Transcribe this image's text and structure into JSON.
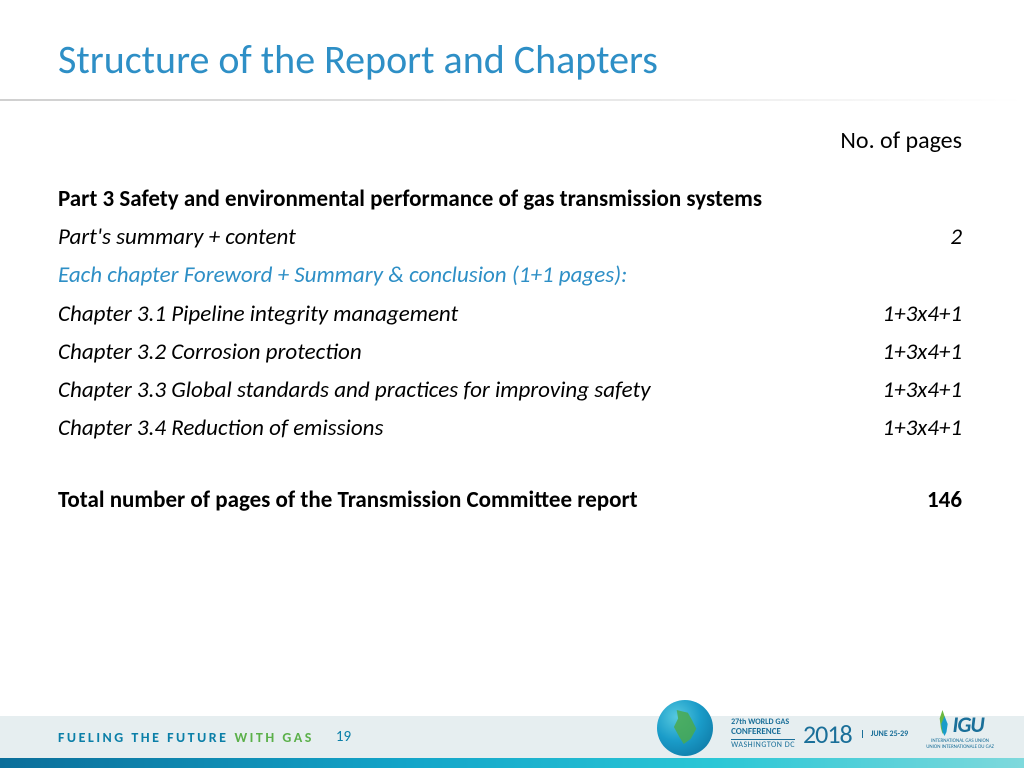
{
  "title": "Structure of the Report and Chapters",
  "header_right": "No. of pages",
  "part_heading": "Part 3 Safety and environmental performance of gas transmission systems",
  "summary_row": {
    "label": "Part's summary + content",
    "value": "2"
  },
  "foreword_note": "Each chapter Foreword + Summary & conclusion (1+1 pages):",
  "chapters": [
    {
      "label": "Chapter 3.1 Pipeline integrity management",
      "value": "1+3x4+1"
    },
    {
      "label": "Chapter 3.2 Corrosion protection",
      "value": "1+3x4+1"
    },
    {
      "label": "Chapter 3.3 Global standards and practices for improving safety",
      "value": "1+3x4+1"
    },
    {
      "label": "Chapter 3.4 Reduction of emissions",
      "value": "1+3x4+1"
    }
  ],
  "total_row": {
    "label": "Total number of pages of the Transmission Committee report",
    "value": "146"
  },
  "footer": {
    "tagline_a": "FUELING THE FUTURE",
    "tagline_b": "WITH GAS",
    "page_number": "19",
    "conference": {
      "line1": "27th WORLD GAS",
      "line2": "CONFERENCE",
      "line3": "WASHINGTON DC",
      "year": "2018",
      "date1": "JUNE 25-29"
    },
    "igu": {
      "text": "IGU",
      "sub1": "INTERNATIONAL GAS UNION",
      "sub2": "UNION INTERNATIONALE DU GAZ"
    }
  },
  "colors": {
    "title_color": "#2e8fc6",
    "text_color": "#000000",
    "accent_blue": "#0b7fa8",
    "accent_green": "#5bb04a",
    "background": "#ffffff",
    "footer_band": "#e6eef0"
  },
  "typography": {
    "title_fontsize": 40,
    "body_fontsize": 23,
    "footer_fontsize": 14,
    "font_family": "Calibri"
  }
}
